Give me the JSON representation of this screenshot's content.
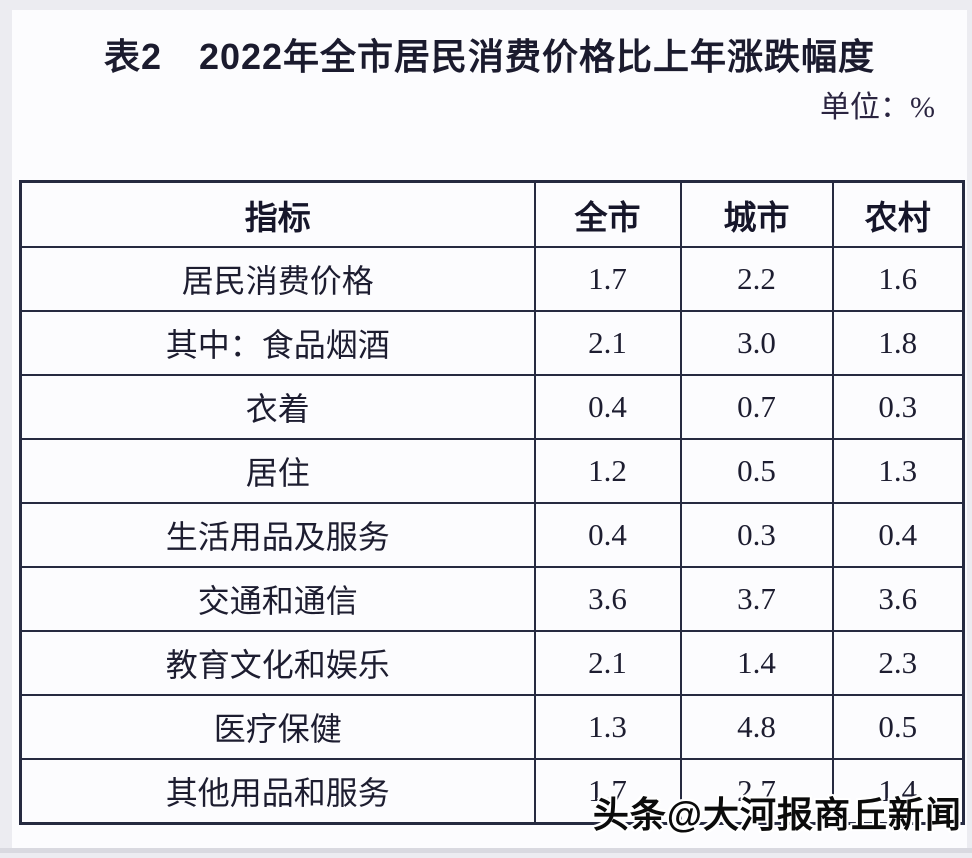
{
  "page": {
    "title": "表2　2022年全市居民消费价格比上年涨跌幅度",
    "unit_label": "单位：%",
    "watermark": "头条@大河报商丘新闻"
  },
  "table": {
    "columns": [
      "指标",
      "全市",
      "城市",
      "农村"
    ],
    "rows": [
      {
        "indicator": "居民消费价格",
        "values": [
          "1.7",
          "2.2",
          "1.6"
        ]
      },
      {
        "indicator": "其中：食品烟酒",
        "values": [
          "2.1",
          "3.0",
          "1.8"
        ]
      },
      {
        "indicator": "衣着",
        "values": [
          "0.4",
          "0.7",
          "0.3"
        ]
      },
      {
        "indicator": "居住",
        "values": [
          "1.2",
          "0.5",
          "1.3"
        ]
      },
      {
        "indicator": "生活用品及服务",
        "values": [
          "0.4",
          "0.3",
          "0.4"
        ]
      },
      {
        "indicator": "交通和通信",
        "values": [
          "3.6",
          "3.7",
          "3.6"
        ]
      },
      {
        "indicator": "教育文化和娱乐",
        "values": [
          "2.1",
          "1.4",
          "2.3"
        ]
      },
      {
        "indicator": "医疗保健",
        "values": [
          "1.3",
          "4.8",
          "0.5"
        ]
      },
      {
        "indicator": "其他用品和服务",
        "values": [
          "1.7",
          "2.7",
          "1.4"
        ]
      }
    ]
  },
  "colors": {
    "border": "#262a40",
    "text": "#1d1d30",
    "background": "#fcfcfe",
    "edge": "#ececf1"
  }
}
